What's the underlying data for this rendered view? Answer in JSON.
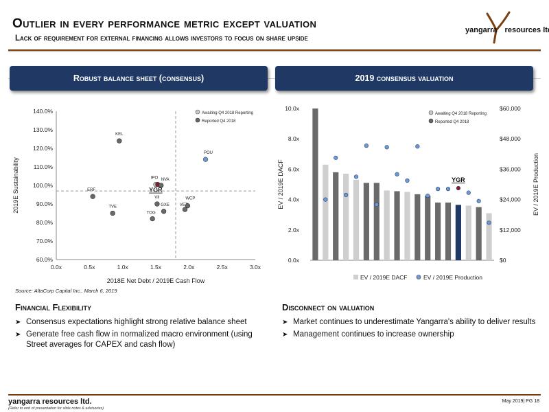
{
  "slide": {
    "title": "Outlier in every performance metric except valuation",
    "subtitle": "Lack of requirement for external financing allows investors to focus on share upside",
    "logo_text": "yangarra",
    "logo_text_2": "resources ltd.",
    "source": "Source: AltaCorp Capital Inc., March 6, 2019",
    "footer_brand": "yangarra resources ltd.",
    "footer_note": "(Refer to end of presentation for slide notes & advisories)",
    "footer_page": "May 2019| PG 18",
    "colors": {
      "navy": "#1f3864",
      "brown_rule": "#7b3f0f",
      "highlight_red": "#8b1a2b",
      "blue_dot": "#6d9bd6"
    }
  },
  "left_panel": {
    "header": "Robust balance sheet (consensus)",
    "section_title": "Financial Flexibility",
    "bullets": [
      "Consensus expectations highlight strong relative balance sheet",
      "Generate free cash flow in normalized macro environment (using Street averages for CAPEX and cash flow)"
    ]
  },
  "right_panel": {
    "header": "2019 consensus valuation",
    "section_title": "Disconnect on valuation",
    "bullets": [
      "Market continues to underestimate Yangarra's ability to deliver results",
      "Management continues to increase ownership"
    ]
  },
  "chart_data": [
    {
      "type": "scatter",
      "xlabel": "2018E Net Debt / 2019E Cash Flow",
      "ylabel": "2019E Sustainability",
      "xlim": [
        0,
        3
      ],
      "ylim": [
        60,
        140
      ],
      "x_ticks": [
        "0.0x",
        "0.5x",
        "1.0x",
        "1.5x",
        "2.0x",
        "2.5x",
        "3.0x"
      ],
      "y_ticks": [
        "60.0%",
        "70.0%",
        "80.0%",
        "90.0%",
        "100.0%",
        "110.0%",
        "120.0%",
        "130.0%",
        "140.0%"
      ],
      "reference_lines": {
        "x": 1.8,
        "y": 97
      },
      "legend": [
        "Awaiting Q4 2018 Reporting",
        "Reported Q4 2018"
      ],
      "legend_position": "top-right",
      "highlight_label": "YGR",
      "points": [
        {
          "label": "ERF",
          "x": 0.55,
          "y": 94,
          "group": "reported"
        },
        {
          "label": "TVE",
          "x": 0.85,
          "y": 85,
          "group": "reported"
        },
        {
          "label": "KEL",
          "x": 0.95,
          "y": 124,
          "group": "reported"
        },
        {
          "label": "IPO",
          "x": 1.5,
          "y": 100.5,
          "group": "awaiting"
        },
        {
          "label": "YGR",
          "x": 1.53,
          "y": 100.5,
          "group": "highlight"
        },
        {
          "label": "NVA",
          "x": 1.58,
          "y": 100,
          "group": "reported"
        },
        {
          "label": "VII",
          "x": 1.52,
          "y": 90,
          "group": "reported"
        },
        {
          "label": "GXE",
          "x": 1.62,
          "y": 86,
          "group": "reported"
        },
        {
          "label": "TOG",
          "x": 1.45,
          "y": 82,
          "group": "reported"
        },
        {
          "label": "VET",
          "x": 1.94,
          "y": 87,
          "group": "reported"
        },
        {
          "label": "WCP",
          "x": 1.98,
          "y": 89,
          "group": "reported"
        },
        {
          "label": "POU",
          "x": 2.25,
          "y": 114,
          "group": "awaiting"
        }
      ]
    },
    {
      "type": "bar",
      "ylabel": "EV / 2019E DACF",
      "y2label": "EV / 2019E Production",
      "ylim": [
        0,
        10
      ],
      "y2lim": [
        0,
        60000
      ],
      "y_ticks": [
        "0.0x",
        "2.0x",
        "4.0x",
        "6.0x",
        "8.0x",
        "10.0x"
      ],
      "y2_ticks": [
        "$0",
        "$12,000",
        "$24,000",
        "$36,000",
        "$48,000",
        "$60,000"
      ],
      "highlight_label": "YGR",
      "highlight_index": 14,
      "legend_top": [
        "Awaiting Q4 2018 Reporting",
        "Reported Q4 2018"
      ],
      "series": [
        {
          "name": "EV / 2019E DACF",
          "values": [
            10.0,
            6.3,
            5.8,
            5.7,
            5.3,
            5.1,
            5.1,
            4.6,
            4.55,
            4.5,
            4.35,
            4.25,
            3.8,
            3.8,
            3.65,
            3.6,
            3.5,
            3.1
          ],
          "groups": [
            "r",
            "a",
            "r",
            "a",
            "a",
            "r",
            "r",
            "a",
            "r",
            "a",
            "r",
            "r",
            "r",
            "r",
            "h",
            "a",
            "r",
            "a"
          ]
        },
        {
          "name": "EV / 2019E Production",
          "values": [
            null,
            24000,
            40500,
            25800,
            33000,
            45300,
            22000,
            44700,
            34000,
            31500,
            45000,
            25500,
            28200,
            28200,
            28500,
            26700,
            23400,
            14800
          ]
        }
      ]
    }
  ]
}
